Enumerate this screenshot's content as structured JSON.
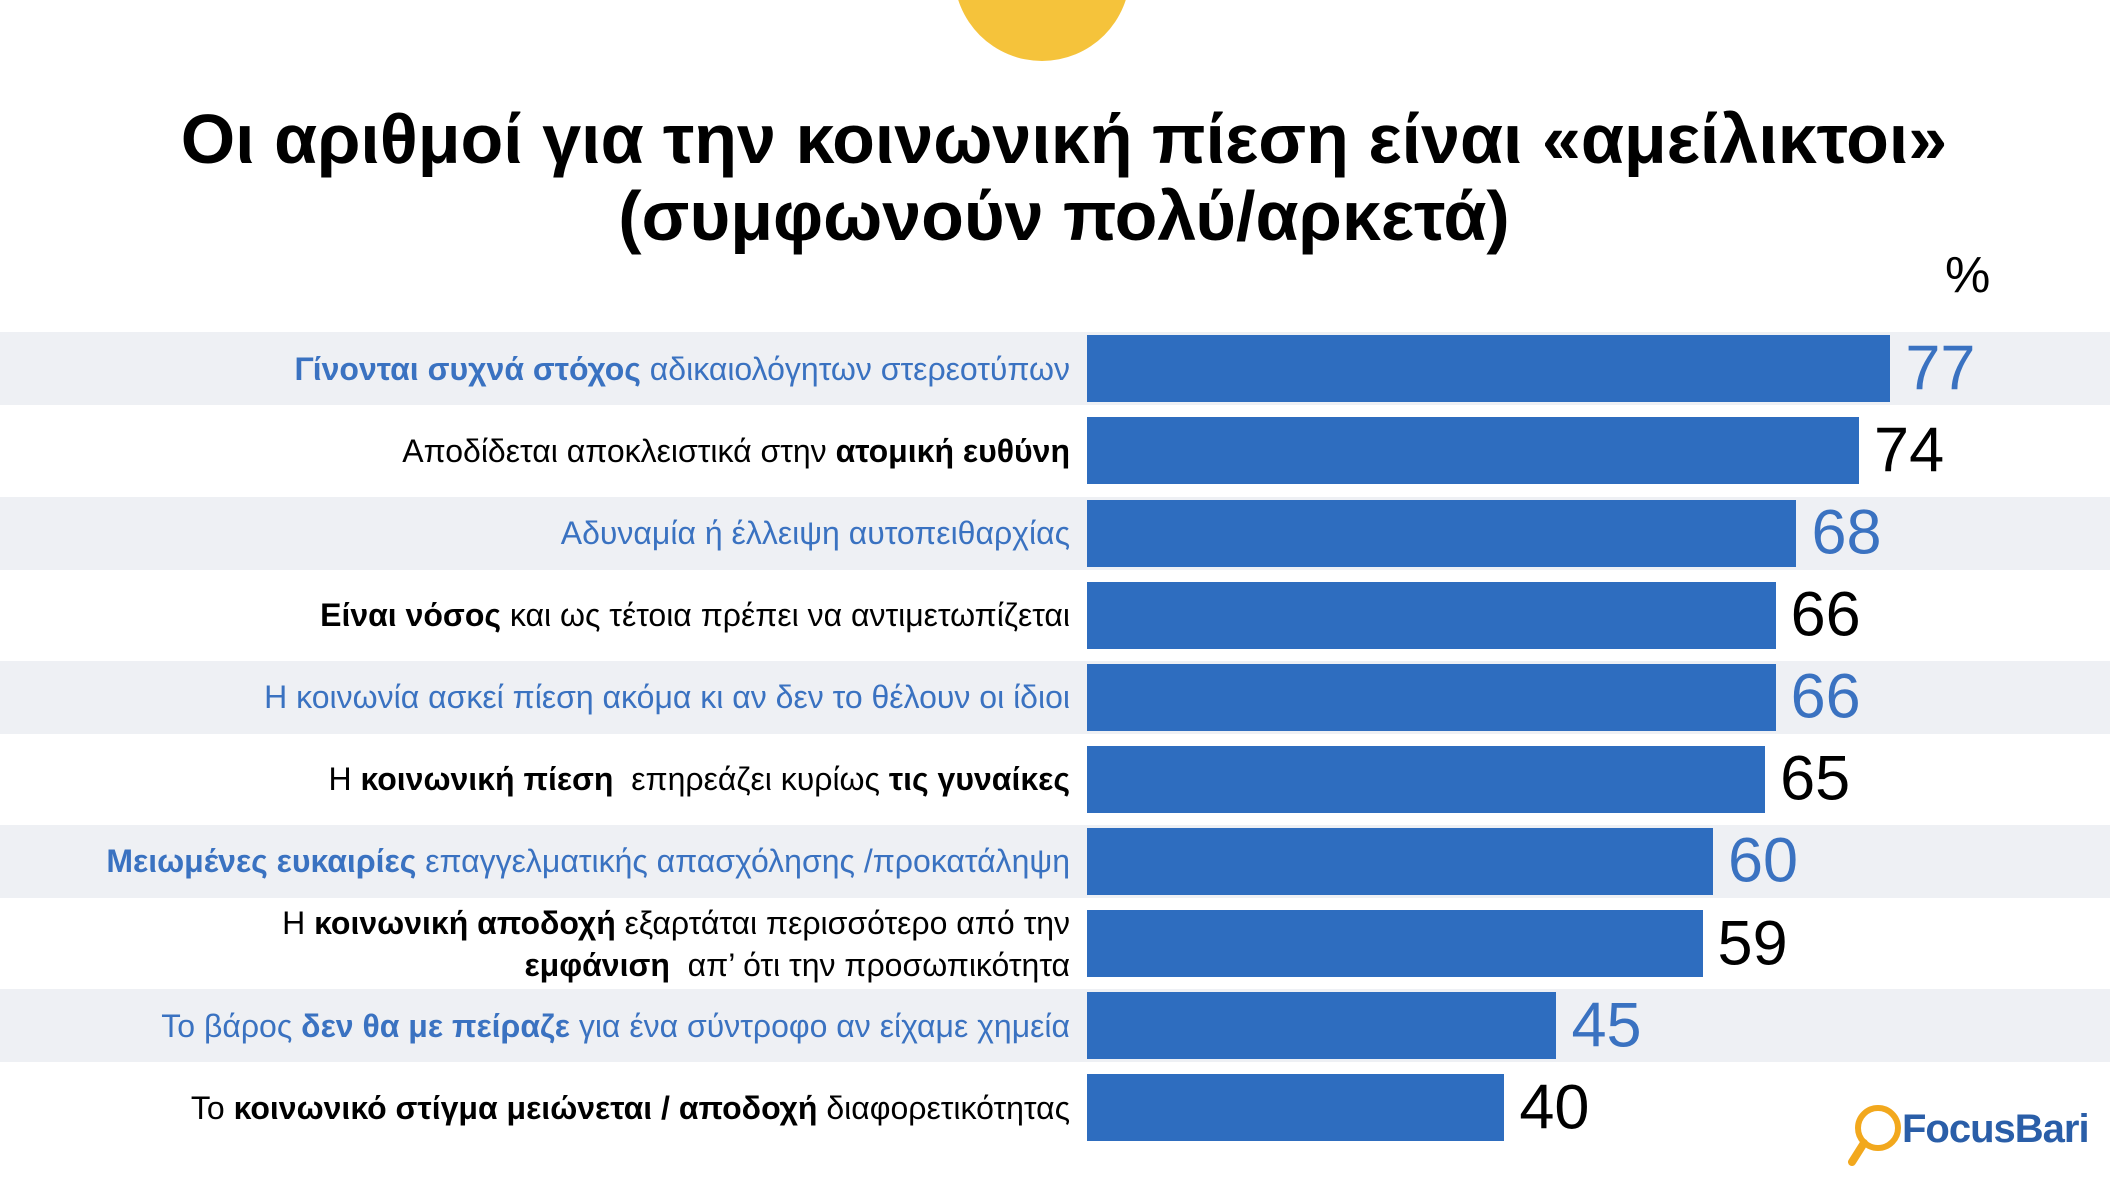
{
  "colors": {
    "bar": "#2e6dbf",
    "highlight_text": "#3a72c1",
    "text": "#000000",
    "band": "#eef0f4",
    "circle": "#f5c33b",
    "logo_text": "#2a5ea8",
    "logo_icon": "#f2a81d"
  },
  "chart_data": {
    "type": "bar",
    "orientation": "horizontal",
    "title": "Οι αριθμοί για την κοινωνική πίεση είναι «αμείλικτοι»",
    "subtitle": "(συμφωνούν πολύ/αρκετά)",
    "unit": "%",
    "grid": false,
    "data_labels": true,
    "categories": [
      "Γίνονται συχνά στόχος αδικαιολόγητων στερεοτύπων",
      "Αποδίδεται αποκλειστικά στην ατομική ευθύνη",
      "Αδυναμία ή έλλειψη αυτοπειθαρχίας",
      "Είναι νόσος και ως τέτοια πρέπει να αντιμετωπίζεται",
      "Η κοινωνία ασκεί πίεση ακόμα κι αν δεν το θέλουν οι ίδιοι",
      "Η κοινωνική πίεση  επηρεάζει κυρίως τις γυναίκες",
      "Μειωμένες ευκαιρίες επαγγελματικής απασχόλησης /προκατάληψη",
      "Η κοινωνική αποδοχή εξαρτάται περισσότερο από την εμφάνιση  απ’ ότι την προσωπικότητα",
      "Το βάρος δεν θα με πείραζε για ένα σύντροφο αν είχαμε χημεία",
      "Το κοινωνικό στίγμα μειώνεται / αποδοχή διαφορετικότητας"
    ],
    "values": [
      77,
      74,
      68,
      66,
      66,
      65,
      60,
      59,
      45,
      40
    ],
    "emphasized_text": [
      [
        "Γίνονται συχνά στόχος"
      ],
      [
        "ατομική ευθύνη"
      ],
      [],
      [
        "Είναι νόσος"
      ],
      [],
      [
        "κοινωνική πίεση",
        "τις γυναίκες"
      ],
      [
        "Μειωμένες ευκαιρίες"
      ],
      [
        "κοινωνική αποδοχή",
        "εμφάνιση"
      ],
      [
        "δεν θα με πείραζε"
      ],
      [
        "κοινωνικό στίγμα μειώνεται / αποδοχή"
      ]
    ]
  },
  "logo": {
    "name": "FocusBari",
    "icon": "magnifier-icon"
  }
}
